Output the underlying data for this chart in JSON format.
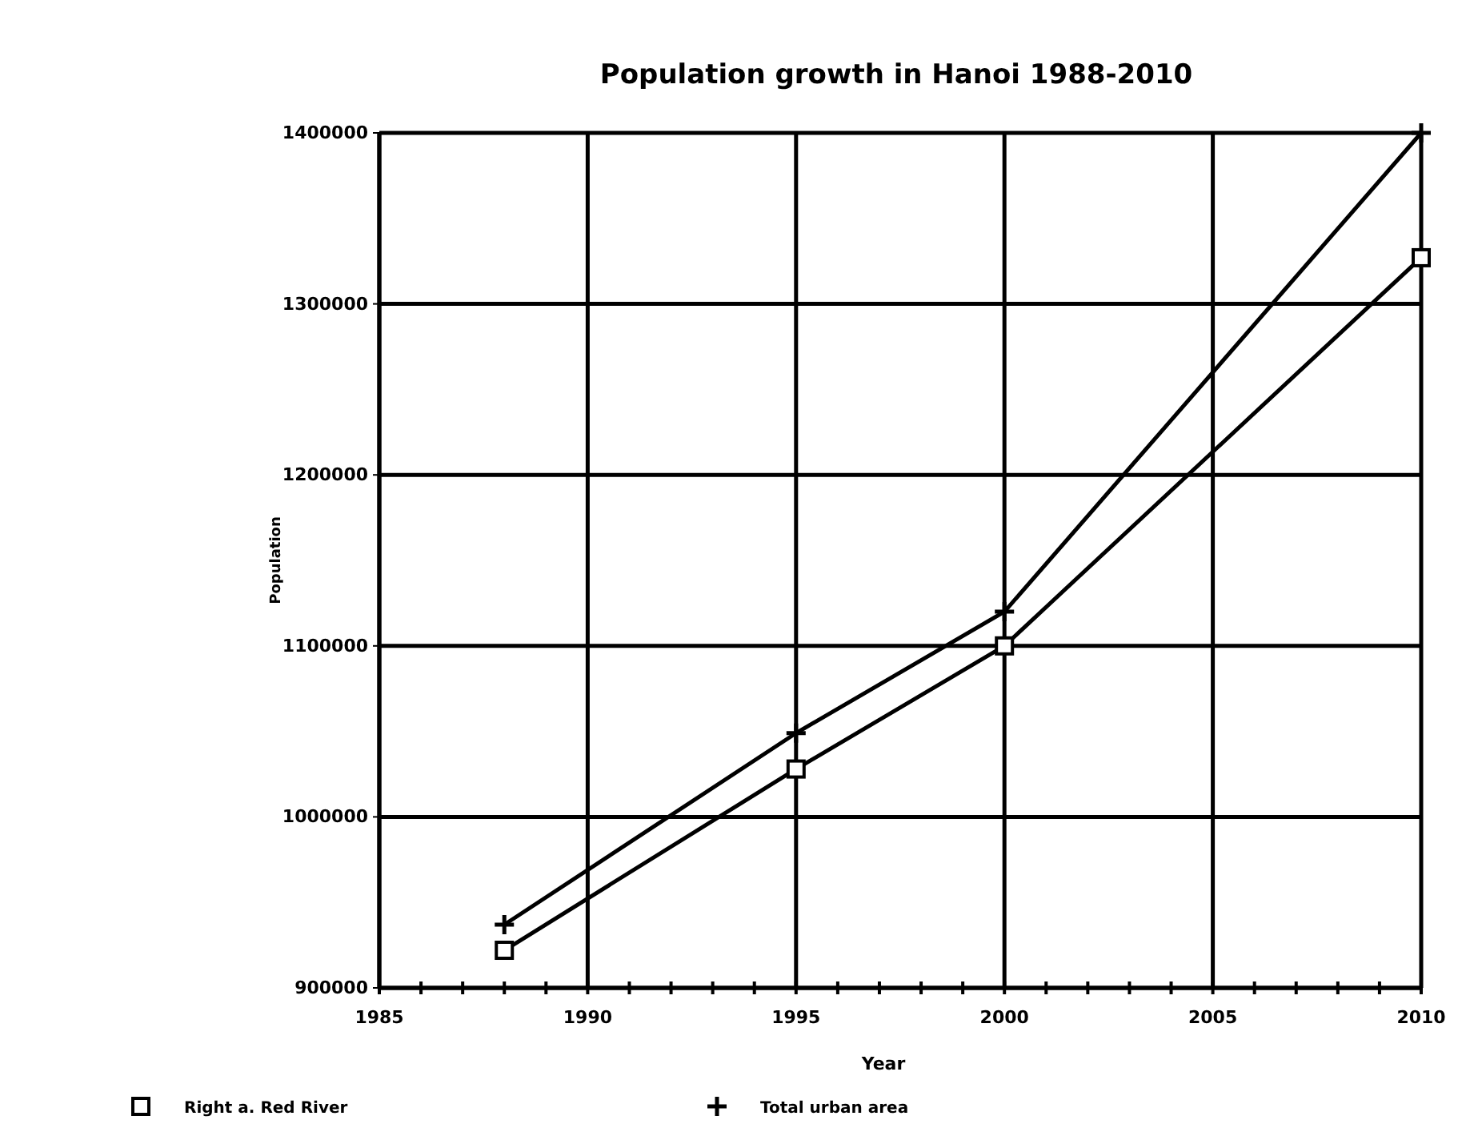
{
  "chart_data": {
    "type": "line",
    "title": "Population growth in Hanoi 1988-2010",
    "xlabel": "Year",
    "ylabel": "Population",
    "x": [
      1988,
      1995,
      2000,
      2010
    ],
    "series": [
      {
        "name": "Right a. Red River",
        "color": "#000000",
        "marker": "square",
        "values": [
          922000,
          1028000,
          1100000,
          1327000
        ]
      },
      {
        "name": "Total urban area",
        "color": "#000000",
        "marker": "cross",
        "values": [
          937000,
          1049000,
          1120000,
          1400000
        ]
      }
    ],
    "xlim": [
      1985,
      2010
    ],
    "xticks": [
      1985,
      {
        "value": 1986,
        "label": null
      },
      {
        "value": 1987,
        "label": null
      },
      {
        "value": 1988,
        "label": null
      },
      {
        "value": 1989,
        "label": null
      },
      1990,
      {
        "value": 1991,
        "label": null
      },
      {
        "value": 1992,
        "label": null
      },
      {
        "value": 1993,
        "label": null
      },
      {
        "value": 1994,
        "label": null
      },
      1995,
      {
        "value": 1996,
        "label": null
      },
      {
        "value": 1997,
        "label": null
      },
      {
        "value": 1998,
        "label": null
      },
      {
        "value": 1999,
        "label": null
      },
      2000,
      {
        "value": 2001,
        "label": null
      },
      {
        "value": 2002,
        "label": null
      },
      {
        "value": 2003,
        "label": null
      },
      {
        "value": 2004,
        "label": null
      },
      2005,
      {
        "value": 2006,
        "label": null
      },
      {
        "value": 2007,
        "label": null
      },
      {
        "value": 2008,
        "label": null
      },
      {
        "value": 2009,
        "label": null
      },
      2010
    ],
    "ylim": [
      900000,
      1400000
    ],
    "yticks": [
      900000,
      1000000,
      1100000,
      1200000,
      1300000,
      1400000
    ],
    "grid": true,
    "legend": "bottom",
    "line_style": "solid"
  }
}
